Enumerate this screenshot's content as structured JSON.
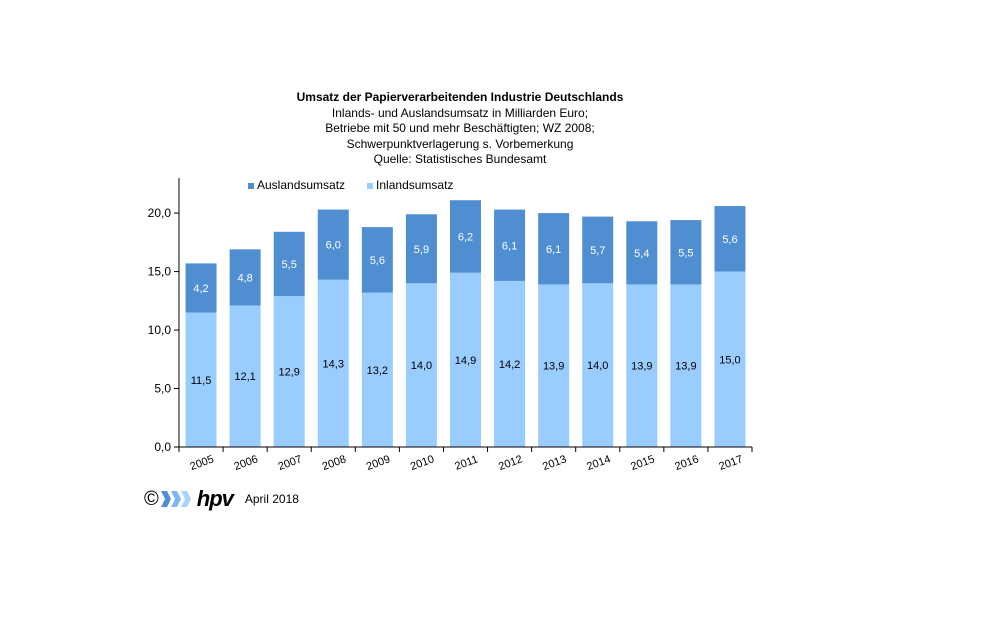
{
  "chart_data": {
    "type": "bar",
    "stacked": true,
    "title": "Umsatz der Papierverarbeitenden Industrie Deutschlands",
    "subtitle_lines": [
      "Inlands- und Auslandsumsatz in Milliarden Euro;",
      "Betriebe mit 50 und mehr Beschäftigten;  WZ 2008;",
      "Schwerpunktverlagerung  s. Vorbemerkung",
      "Quelle:  Statistisches Bundesamt"
    ],
    "categories": [
      "2005",
      "2006",
      "2007",
      "2008",
      "2009",
      "2010",
      "2011",
      "2012",
      "2013",
      "2014",
      "2015",
      "2016",
      "2017"
    ],
    "series": [
      {
        "name": "Inlandsumsatz",
        "color": "#99ccff",
        "values": [
          11.5,
          12.1,
          12.9,
          14.3,
          13.2,
          14.0,
          14.9,
          14.2,
          13.9,
          14.0,
          13.9,
          13.9,
          15.0
        ],
        "labels": [
          "11,5",
          "12,1",
          "12,9",
          "14,3",
          "13,2",
          "14,0",
          "14,9",
          "14,2",
          "13,9",
          "14,0",
          "13,9",
          "13,9",
          "15,0"
        ]
      },
      {
        "name": "Auslandsumsatz",
        "color": "#4f8fd1",
        "values": [
          4.2,
          4.8,
          5.5,
          6.0,
          5.6,
          5.9,
          6.2,
          6.1,
          6.1,
          5.7,
          5.4,
          5.5,
          5.6
        ],
        "labels": [
          "4,2",
          "4,8",
          "5,5",
          "6,0",
          "5,6",
          "5,9",
          "6,2",
          "6,1",
          "6,1",
          "5,7",
          "5,4",
          "5,5",
          "5,6"
        ]
      }
    ],
    "yticks": [
      0,
      5,
      10,
      15,
      20
    ],
    "ytick_labels": [
      "0,0",
      "5,0",
      "10,0",
      "15,0",
      "20,0"
    ],
    "ylim": [
      0,
      23
    ],
    "legend_order": [
      "Auslandsumsatz",
      "Inlandsumsatz"
    ],
    "legend_position": "top-left",
    "grid": false
  },
  "footer": {
    "copyright": "©",
    "logo": "hpv",
    "date": "April 2018",
    "logo_arrow_colors": [
      "#4f8fd1",
      "#7fb7ec",
      "#a9d2f7"
    ]
  }
}
